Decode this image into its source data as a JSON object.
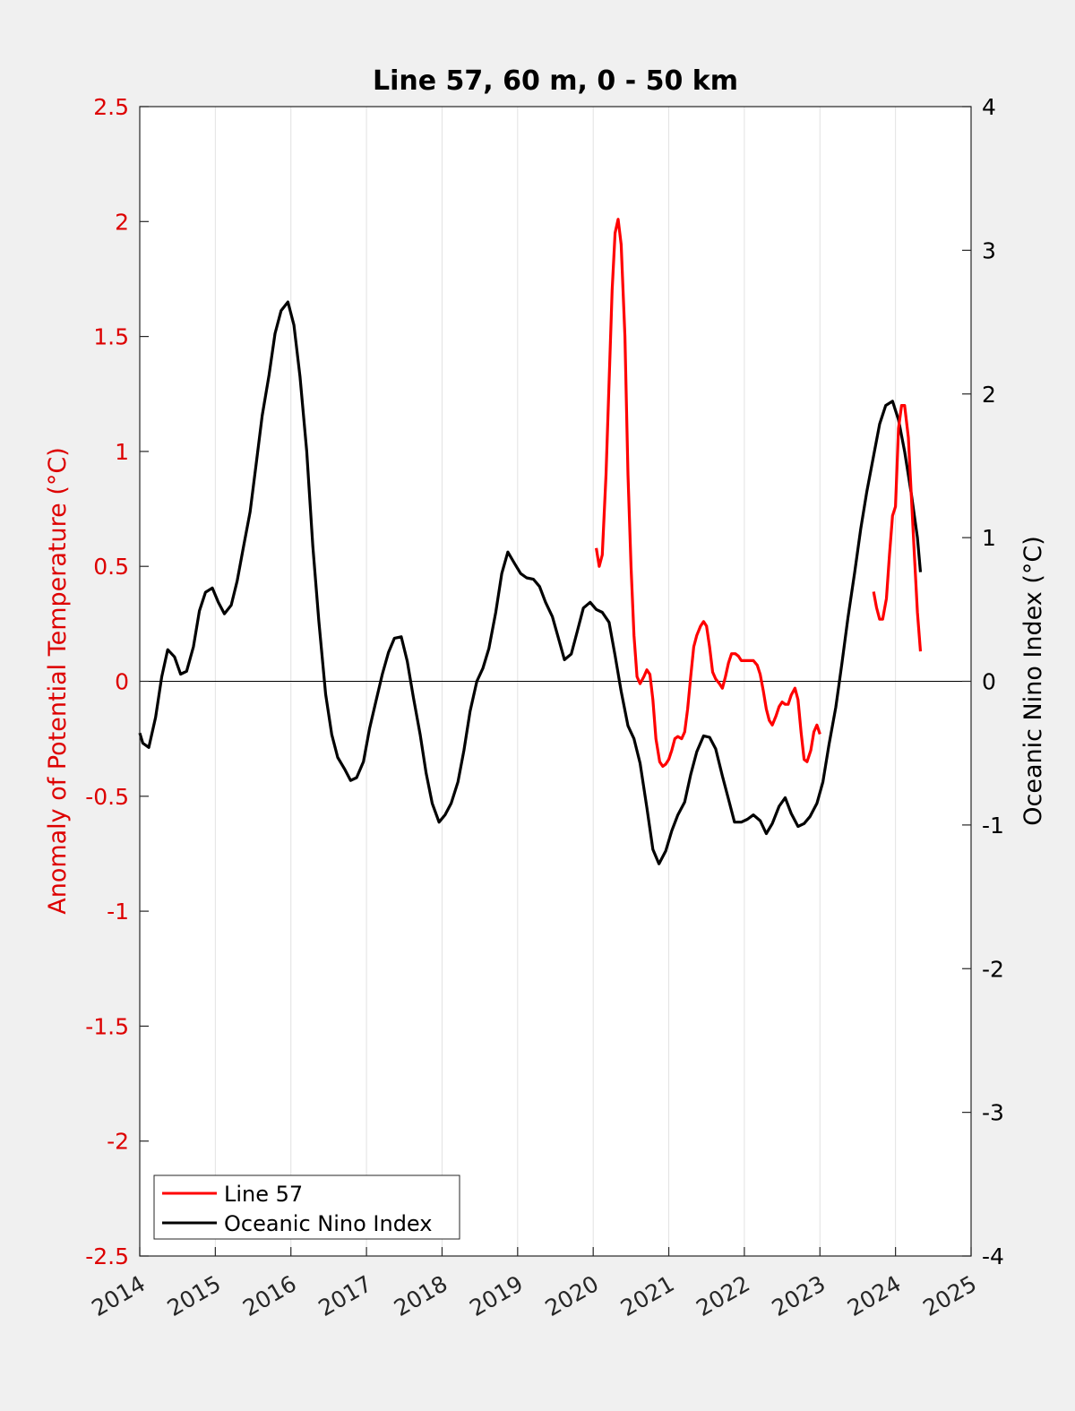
{
  "chart_data": {
    "type": "line",
    "title": "Line 57, 60 m, 0 - 50 km",
    "ylabel": "Anomaly of Potential Temperature (°C)",
    "ylabel_right": "Oceanic Nino Index (°C)",
    "xlim": [
      2014,
      2025
    ],
    "ylim": [
      -2.5,
      2.5
    ],
    "ylim_right": [
      -4,
      4
    ],
    "x_ticks": [
      "2014",
      "2015",
      "2016",
      "2017",
      "2018",
      "2019",
      "2020",
      "2021",
      "2022",
      "2023",
      "2024",
      "2025"
    ],
    "y_ticks": [
      "-2.5",
      "-2",
      "-1.5",
      "-1",
      "-0.5",
      "0",
      "0.5",
      "1",
      "1.5",
      "2",
      "2.5"
    ],
    "y_ticks_right": [
      "-4",
      "-3",
      "-2",
      "-1",
      "0",
      "1",
      "2",
      "3",
      "4"
    ],
    "grid": "vertical",
    "legend_position": "bottom-left",
    "colors": {
      "line57": "#ff0000",
      "oni": "#000000",
      "left_axis": "#dd0000",
      "right_axis": "#000000"
    },
    "series": [
      {
        "name": "Line 57",
        "axis": "left",
        "segments": [
          [
            [
              2020.04,
              0.58
            ],
            [
              2020.08,
              0.5
            ],
            [
              2020.12,
              0.55
            ],
            [
              2020.17,
              0.9
            ],
            [
              2020.21,
              1.3
            ],
            [
              2020.25,
              1.7
            ],
            [
              2020.29,
              1.95
            ],
            [
              2020.33,
              2.01
            ],
            [
              2020.37,
              1.9
            ],
            [
              2020.42,
              1.5
            ],
            [
              2020.46,
              0.9
            ],
            [
              2020.5,
              0.5
            ],
            [
              2020.54,
              0.2
            ],
            [
              2020.58,
              0.02
            ],
            [
              2020.62,
              -0.01
            ],
            [
              2020.67,
              0.02
            ],
            [
              2020.71,
              0.05
            ],
            [
              2020.75,
              0.03
            ],
            [
              2020.79,
              -0.08
            ],
            [
              2020.83,
              -0.25
            ],
            [
              2020.88,
              -0.35
            ],
            [
              2020.92,
              -0.37
            ],
            [
              2020.96,
              -0.36
            ],
            [
              2021.0,
              -0.34
            ],
            [
              2021.04,
              -0.3
            ],
            [
              2021.08,
              -0.25
            ],
            [
              2021.12,
              -0.24
            ],
            [
              2021.17,
              -0.25
            ],
            [
              2021.21,
              -0.22
            ],
            [
              2021.25,
              -0.12
            ],
            [
              2021.29,
              0.02
            ],
            [
              2021.33,
              0.15
            ],
            [
              2021.37,
              0.2
            ],
            [
              2021.42,
              0.24
            ],
            [
              2021.46,
              0.26
            ],
            [
              2021.5,
              0.24
            ],
            [
              2021.54,
              0.15
            ],
            [
              2021.58,
              0.04
            ],
            [
              2021.62,
              0.01
            ],
            [
              2021.67,
              -0.01
            ],
            [
              2021.71,
              -0.03
            ],
            [
              2021.75,
              0.02
            ],
            [
              2021.79,
              0.08
            ],
            [
              2021.83,
              0.12
            ],
            [
              2021.88,
              0.12
            ],
            [
              2021.92,
              0.11
            ],
            [
              2021.96,
              0.09
            ],
            [
              2022.0,
              0.09
            ],
            [
              2022.04,
              0.09
            ],
            [
              2022.08,
              0.09
            ],
            [
              2022.12,
              0.09
            ],
            [
              2022.17,
              0.07
            ],
            [
              2022.21,
              0.03
            ],
            [
              2022.25,
              -0.04
            ],
            [
              2022.29,
              -0.12
            ],
            [
              2022.33,
              -0.17
            ],
            [
              2022.37,
              -0.19
            ],
            [
              2022.42,
              -0.15
            ],
            [
              2022.46,
              -0.11
            ],
            [
              2022.5,
              -0.09
            ],
            [
              2022.54,
              -0.1
            ],
            [
              2022.58,
              -0.1
            ],
            [
              2022.62,
              -0.06
            ],
            [
              2022.67,
              -0.03
            ],
            [
              2022.71,
              -0.08
            ],
            [
              2022.75,
              -0.22
            ],
            [
              2022.79,
              -0.34
            ],
            [
              2022.83,
              -0.35
            ],
            [
              2022.88,
              -0.3
            ],
            [
              2022.92,
              -0.22
            ],
            [
              2022.96,
              -0.19
            ],
            [
              2023.0,
              -0.23
            ]
          ],
          [
            [
              2023.71,
              0.39
            ],
            [
              2023.75,
              0.32
            ],
            [
              2023.79,
              0.27
            ],
            [
              2023.83,
              0.27
            ],
            [
              2023.88,
              0.36
            ],
            [
              2023.92,
              0.55
            ],
            [
              2023.96,
              0.72
            ],
            [
              2024.0,
              0.76
            ],
            [
              2024.04,
              1.1
            ],
            [
              2024.08,
              1.2
            ],
            [
              2024.12,
              1.2
            ],
            [
              2024.17,
              1.06
            ],
            [
              2024.21,
              0.8
            ],
            [
              2024.25,
              0.55
            ],
            [
              2024.29,
              0.3
            ],
            [
              2024.33,
              0.13
            ]
          ]
        ]
      },
      {
        "name": "Oceanic Nino Index",
        "axis": "right",
        "points": [
          [
            2014.0,
            -0.36
          ],
          [
            2014.04,
            -0.43
          ],
          [
            2014.12,
            -0.46
          ],
          [
            2014.21,
            -0.25
          ],
          [
            2014.29,
            0.03
          ],
          [
            2014.37,
            0.22
          ],
          [
            2014.46,
            0.17
          ],
          [
            2014.54,
            0.05
          ],
          [
            2014.62,
            0.07
          ],
          [
            2014.71,
            0.24
          ],
          [
            2014.79,
            0.49
          ],
          [
            2014.87,
            0.62
          ],
          [
            2014.96,
            0.65
          ],
          [
            2015.04,
            0.55
          ],
          [
            2015.12,
            0.47
          ],
          [
            2015.21,
            0.53
          ],
          [
            2015.29,
            0.7
          ],
          [
            2015.37,
            0.93
          ],
          [
            2015.46,
            1.18
          ],
          [
            2015.54,
            1.51
          ],
          [
            2015.62,
            1.85
          ],
          [
            2015.71,
            2.13
          ],
          [
            2015.79,
            2.42
          ],
          [
            2015.87,
            2.58
          ],
          [
            2015.96,
            2.64
          ],
          [
            2016.04,
            2.48
          ],
          [
            2016.12,
            2.12
          ],
          [
            2016.21,
            1.6
          ],
          [
            2016.29,
            0.94
          ],
          [
            2016.37,
            0.42
          ],
          [
            2016.46,
            -0.09
          ],
          [
            2016.54,
            -0.37
          ],
          [
            2016.62,
            -0.53
          ],
          [
            2016.71,
            -0.61
          ],
          [
            2016.79,
            -0.69
          ],
          [
            2016.87,
            -0.67
          ],
          [
            2016.96,
            -0.56
          ],
          [
            2017.04,
            -0.33
          ],
          [
            2017.12,
            -0.15
          ],
          [
            2017.21,
            0.05
          ],
          [
            2017.29,
            0.2
          ],
          [
            2017.37,
            0.3
          ],
          [
            2017.46,
            0.31
          ],
          [
            2017.54,
            0.14
          ],
          [
            2017.62,
            -0.11
          ],
          [
            2017.71,
            -0.37
          ],
          [
            2017.79,
            -0.64
          ],
          [
            2017.87,
            -0.85
          ],
          [
            2017.96,
            -0.98
          ],
          [
            2018.04,
            -0.93
          ],
          [
            2018.12,
            -0.85
          ],
          [
            2018.21,
            -0.7
          ],
          [
            2018.29,
            -0.48
          ],
          [
            2018.37,
            -0.21
          ],
          [
            2018.46,
            0.0
          ],
          [
            2018.54,
            0.09
          ],
          [
            2018.62,
            0.23
          ],
          [
            2018.71,
            0.48
          ],
          [
            2018.79,
            0.75
          ],
          [
            2018.87,
            0.9
          ],
          [
            2018.96,
            0.82
          ],
          [
            2019.04,
            0.75
          ],
          [
            2019.12,
            0.72
          ],
          [
            2019.21,
            0.71
          ],
          [
            2019.29,
            0.66
          ],
          [
            2019.37,
            0.55
          ],
          [
            2019.46,
            0.45
          ],
          [
            2019.54,
            0.3
          ],
          [
            2019.62,
            0.15
          ],
          [
            2019.71,
            0.19
          ],
          [
            2019.79,
            0.35
          ],
          [
            2019.87,
            0.51
          ],
          [
            2019.96,
            0.55
          ],
          [
            2020.04,
            0.5
          ],
          [
            2020.12,
            0.48
          ],
          [
            2020.21,
            0.41
          ],
          [
            2020.29,
            0.18
          ],
          [
            2020.37,
            -0.07
          ],
          [
            2020.46,
            -0.31
          ],
          [
            2020.54,
            -0.4
          ],
          [
            2020.62,
            -0.57
          ],
          [
            2020.71,
            -0.88
          ],
          [
            2020.79,
            -1.17
          ],
          [
            2020.87,
            -1.27
          ],
          [
            2020.96,
            -1.18
          ],
          [
            2021.04,
            -1.04
          ],
          [
            2021.12,
            -0.93
          ],
          [
            2021.21,
            -0.84
          ],
          [
            2021.29,
            -0.65
          ],
          [
            2021.37,
            -0.49
          ],
          [
            2021.46,
            -0.38
          ],
          [
            2021.54,
            -0.39
          ],
          [
            2021.62,
            -0.47
          ],
          [
            2021.71,
            -0.66
          ],
          [
            2021.79,
            -0.82
          ],
          [
            2021.87,
            -0.98
          ],
          [
            2021.96,
            -0.98
          ],
          [
            2022.04,
            -0.96
          ],
          [
            2022.12,
            -0.93
          ],
          [
            2022.21,
            -0.97
          ],
          [
            2022.29,
            -1.06
          ],
          [
            2022.37,
            -0.99
          ],
          [
            2022.46,
            -0.87
          ],
          [
            2022.54,
            -0.81
          ],
          [
            2022.62,
            -0.92
          ],
          [
            2022.71,
            -1.01
          ],
          [
            2022.79,
            -0.99
          ],
          [
            2022.87,
            -0.94
          ],
          [
            2022.96,
            -0.85
          ],
          [
            2023.04,
            -0.7
          ],
          [
            2023.12,
            -0.44
          ],
          [
            2023.21,
            -0.18
          ],
          [
            2023.29,
            0.12
          ],
          [
            2023.37,
            0.44
          ],
          [
            2023.46,
            0.76
          ],
          [
            2023.54,
            1.06
          ],
          [
            2023.62,
            1.32
          ],
          [
            2023.71,
            1.57
          ],
          [
            2023.79,
            1.79
          ],
          [
            2023.87,
            1.92
          ],
          [
            2023.96,
            1.95
          ],
          [
            2024.04,
            1.82
          ],
          [
            2024.12,
            1.6
          ],
          [
            2024.21,
            1.3
          ],
          [
            2024.29,
            1.0
          ],
          [
            2024.33,
            0.76
          ]
        ]
      }
    ]
  }
}
